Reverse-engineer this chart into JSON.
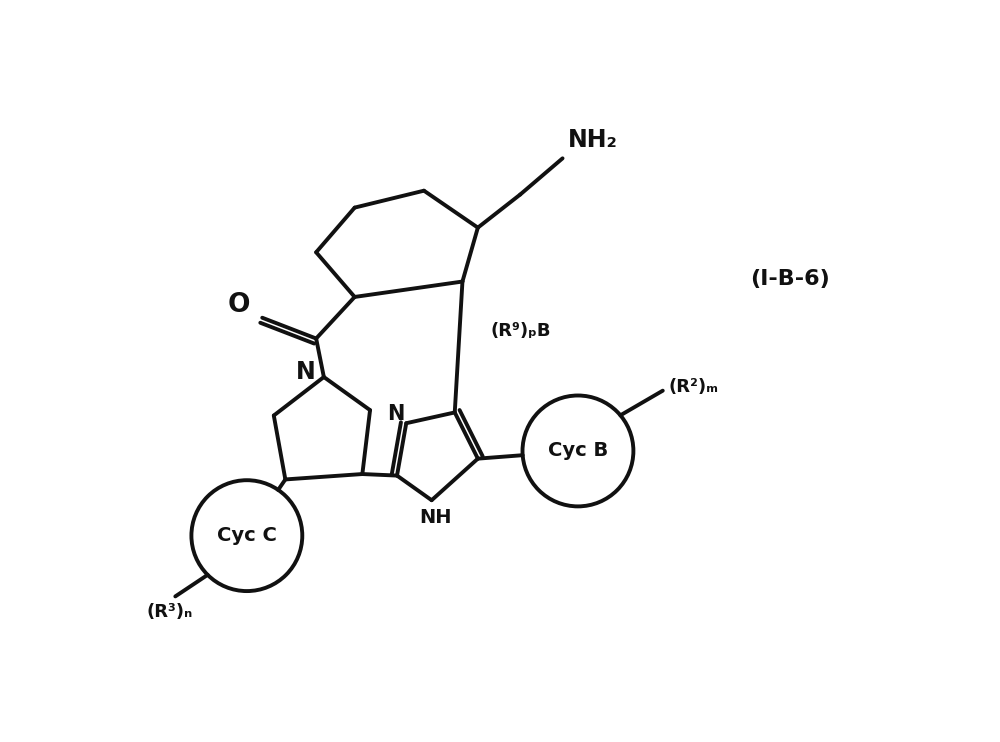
{
  "background_color": "#ffffff",
  "line_color": "#111111",
  "line_width": 2.8,
  "figure_label": "(I-B-6)",
  "nh2_label": "NH₂",
  "r9_label": "(R⁹)ₚB",
  "r2_label": "(R²)ₘ",
  "r3_label": "(R³)ₙ",
  "cyc_b_label": "Cyc B",
  "cyc_c_label": "Cyc C",
  "o_label": "O",
  "n_label": "N",
  "nh_label": "NH"
}
